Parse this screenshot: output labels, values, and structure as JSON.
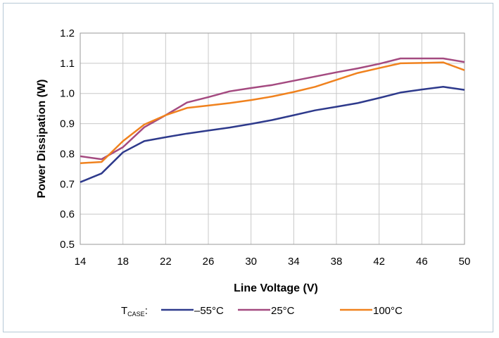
{
  "chart_data": {
    "type": "line",
    "title": "",
    "xlabel": "Line Voltage (V)",
    "ylabel": "Power Dissipation (W)",
    "xlim": [
      14,
      50
    ],
    "ylim": [
      0.5,
      1.2
    ],
    "x_ticks": [
      14,
      18,
      22,
      26,
      30,
      34,
      38,
      42,
      46,
      50
    ],
    "x_tick_labels": [
      "14",
      "18",
      "22",
      "26",
      "30",
      "34",
      "38",
      "42",
      "46",
      "50"
    ],
    "y_ticks": [
      0.5,
      0.6,
      0.7,
      0.8,
      0.9,
      1.0,
      1.1,
      1.2
    ],
    "y_tick_labels": [
      "0.5",
      "0.6",
      "0.7",
      "0.8",
      "0.9",
      "1.0",
      "1.1",
      "1.2"
    ],
    "grid": true,
    "legend_position": "bottom",
    "legend_prefix": {
      "main": "T",
      "sub": "CASE",
      "suffix": ":"
    },
    "x": [
      14,
      16,
      18,
      20,
      22,
      24,
      26,
      28,
      30,
      32,
      34,
      36,
      38,
      40,
      42,
      44,
      46,
      48,
      50
    ],
    "series": [
      {
        "name": "–55°C",
        "color": "#2e3a8c",
        "values": [
          0.706,
          0.735,
          0.805,
          0.842,
          0.855,
          0.867,
          0.877,
          0.887,
          0.899,
          0.912,
          0.928,
          0.944,
          0.956,
          0.968,
          0.985,
          1.003,
          1.013,
          1.022,
          1.012
        ]
      },
      {
        "name": "25°C",
        "color": "#a44a80",
        "values": [
          0.792,
          0.782,
          0.822,
          0.888,
          0.928,
          0.97,
          0.988,
          1.007,
          1.018,
          1.028,
          1.042,
          1.056,
          1.07,
          1.083,
          1.098,
          1.116,
          1.116,
          1.116,
          1.104
        ]
      },
      {
        "name": "100°C",
        "color": "#f0821e",
        "values": [
          0.769,
          0.773,
          0.842,
          0.897,
          0.928,
          0.952,
          0.96,
          0.968,
          0.978,
          0.99,
          1.005,
          1.022,
          1.045,
          1.068,
          1.084,
          1.1,
          1.101,
          1.103,
          1.077
        ]
      }
    ]
  }
}
